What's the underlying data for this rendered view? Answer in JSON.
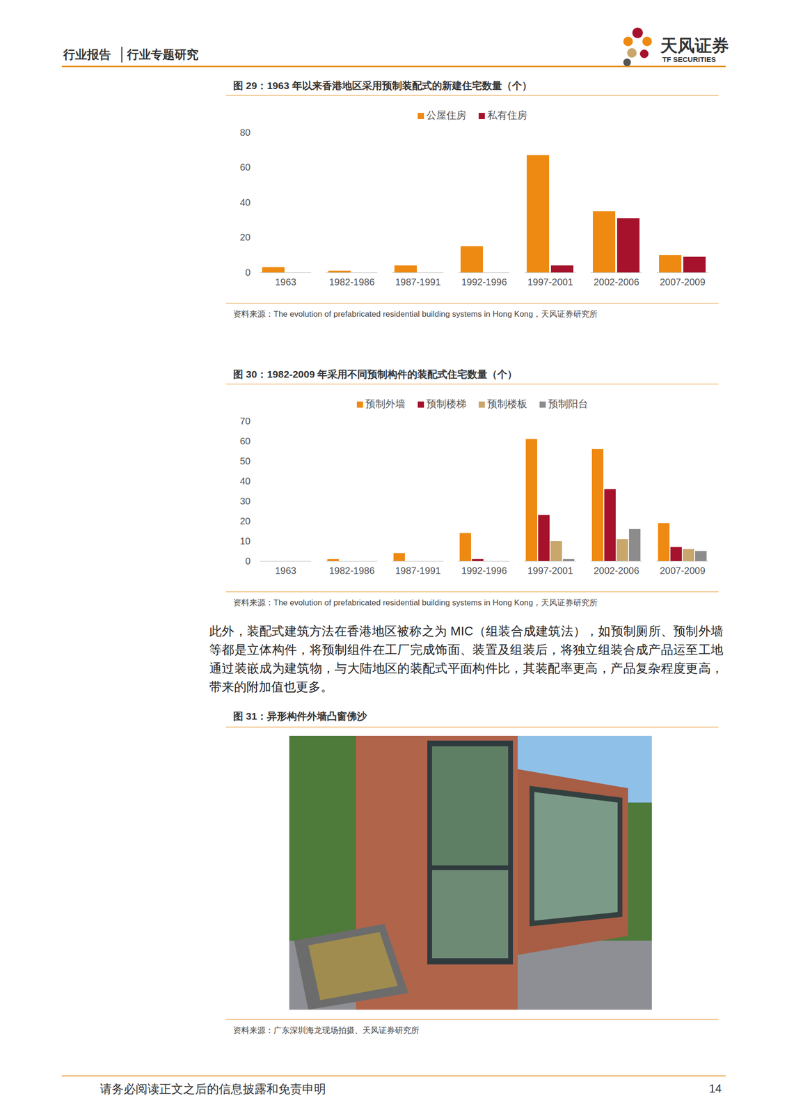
{
  "header": {
    "report_type": "行业报告",
    "report_subtype": "行业专题研究",
    "logo_text": "天风证券",
    "logo_en": "TF SECURITIES"
  },
  "chart_data": [
    {
      "type": "bar",
      "title": "图 29：1963 年以来香港地区采用预制装配式的新建住宅数量（个）",
      "categories": [
        "1963",
        "1982-1986",
        "1987-1991",
        "1992-1996",
        "1997-2001",
        "2002-2006",
        "2007-2009"
      ],
      "series": [
        {
          "name": "公屋住房",
          "color": "#EE8A12",
          "values": [
            3,
            1,
            4,
            15,
            67,
            35,
            10
          ]
        },
        {
          "name": "私有住房",
          "color": "#A6122C",
          "values": [
            0,
            0,
            0,
            0,
            4,
            31,
            9
          ]
        }
      ],
      "ylim": [
        0,
        80
      ],
      "yticks": [
        0,
        20,
        40,
        60,
        80
      ],
      "grid": false,
      "legend": "top",
      "source": "资料来源：The evolution of prefabricated residential building systems in Hong Kong，天风证券研究所"
    },
    {
      "type": "bar",
      "title": "图 30：1982-2009 年采用不同预制构件的装配式住宅数量（个）",
      "categories": [
        "1963",
        "1982-1986",
        "1987-1991",
        "1992-1996",
        "1997-2001",
        "2002-2006",
        "2007-2009"
      ],
      "series": [
        {
          "name": "预制外墙",
          "color": "#EE8A12",
          "values": [
            0,
            1,
            4,
            14,
            61,
            56,
            19
          ]
        },
        {
          "name": "预制楼梯",
          "color": "#A6122C",
          "values": [
            0,
            0,
            0,
            1,
            23,
            36,
            7
          ]
        },
        {
          "name": "预制楼板",
          "color": "#C9A66B",
          "values": [
            0,
            0,
            0,
            0,
            10,
            11,
            6
          ]
        },
        {
          "name": "预制阳台",
          "color": "#8C8C8C",
          "values": [
            0,
            0,
            0,
            0,
            1,
            16,
            5
          ]
        }
      ],
      "ylim": [
        0,
        70
      ],
      "yticks": [
        0,
        10,
        20,
        30,
        40,
        50,
        60,
        70
      ],
      "grid": false,
      "legend": "top",
      "source": "资料来源：The evolution of prefabricated residential building systems in Hong Kong，天风证券研究所"
    }
  ],
  "text": "此外，装配式建筑方法在香港地区被称之为 MIC（组装合成建筑法），如预制厕所、预制外墙等都是立体构件，将预制组件在工厂完成饰面、装置及组装后，将独立组装合成产品运至工地通过装嵌成为建筑物，与大陆地区的装配式平面构件比，其装配率更高，产品复杂程度更高，带来的附加值也更多。",
  "figure": {
    "title": "图 31：异形构件外墙凸窗佛沙",
    "source": "资料来源：广东深圳海龙现场拍摄、天风证券研究所"
  },
  "footer": {
    "disclaimer": "请务必阅读正文之后的信息披露和免责申明",
    "page": 14
  }
}
